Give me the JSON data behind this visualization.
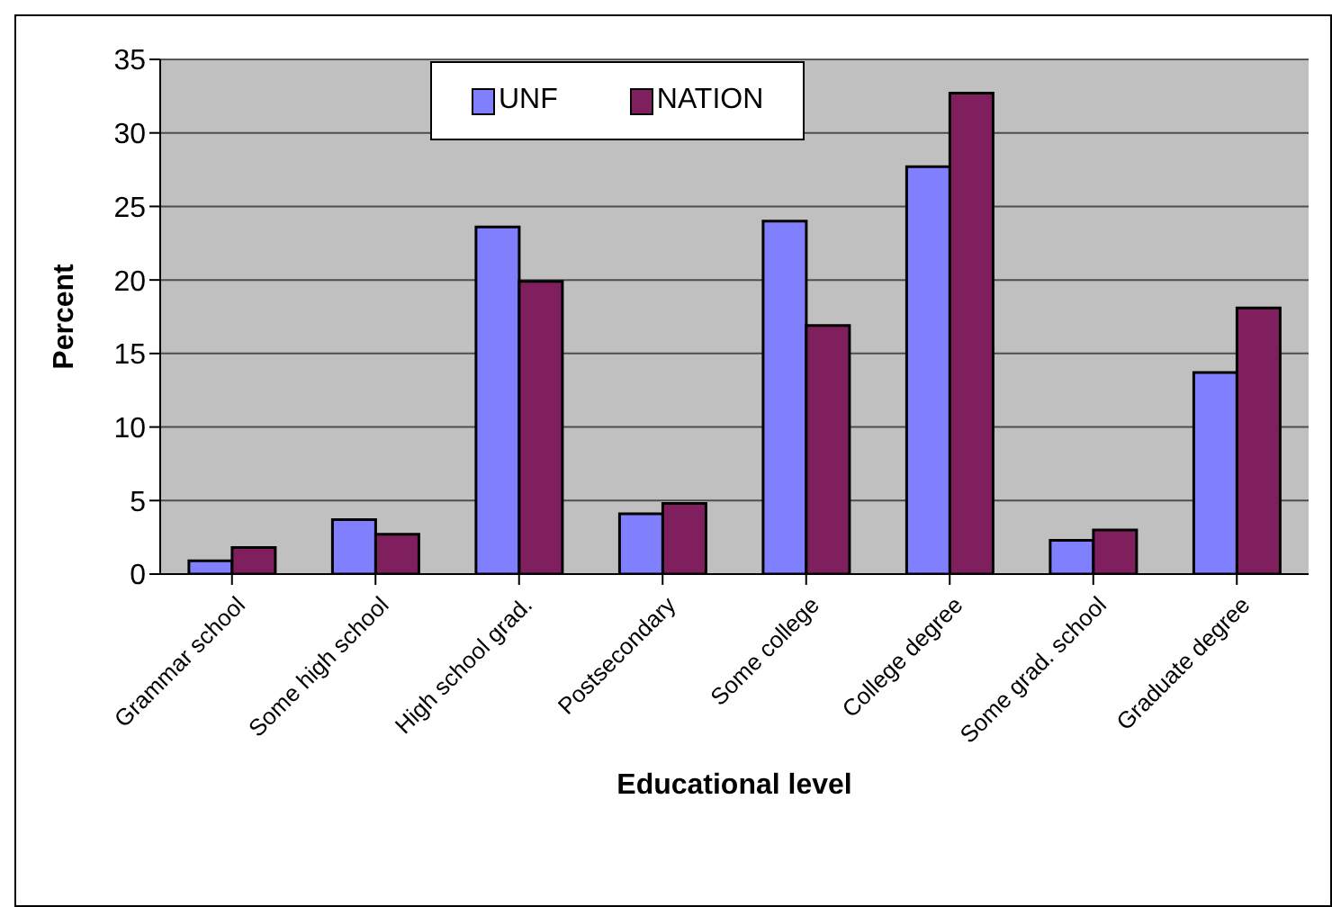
{
  "chart_data": {
    "type": "bar",
    "xlabel": "Educational level",
    "ylabel": "Percent",
    "categories": [
      "Grammar school",
      "Some high school",
      "High school grad.",
      "Postsecondary",
      "Some college",
      "College degree",
      "Some grad. school",
      "Graduate degree"
    ],
    "series": [
      {
        "name": "UNF",
        "color": "#8080ff",
        "values": [
          0.9,
          3.7,
          23.6,
          4.1,
          24.0,
          27.7,
          2.3,
          13.7
        ]
      },
      {
        "name": "NATION",
        "color": "#801f5e",
        "values": [
          1.8,
          2.7,
          19.9,
          4.8,
          16.9,
          32.7,
          3.0,
          18.1
        ]
      }
    ],
    "ylim": [
      0,
      35
    ],
    "yticks": [
      0,
      5,
      10,
      15,
      20,
      25,
      30,
      35
    ],
    "grid": "y",
    "legend": "top"
  }
}
